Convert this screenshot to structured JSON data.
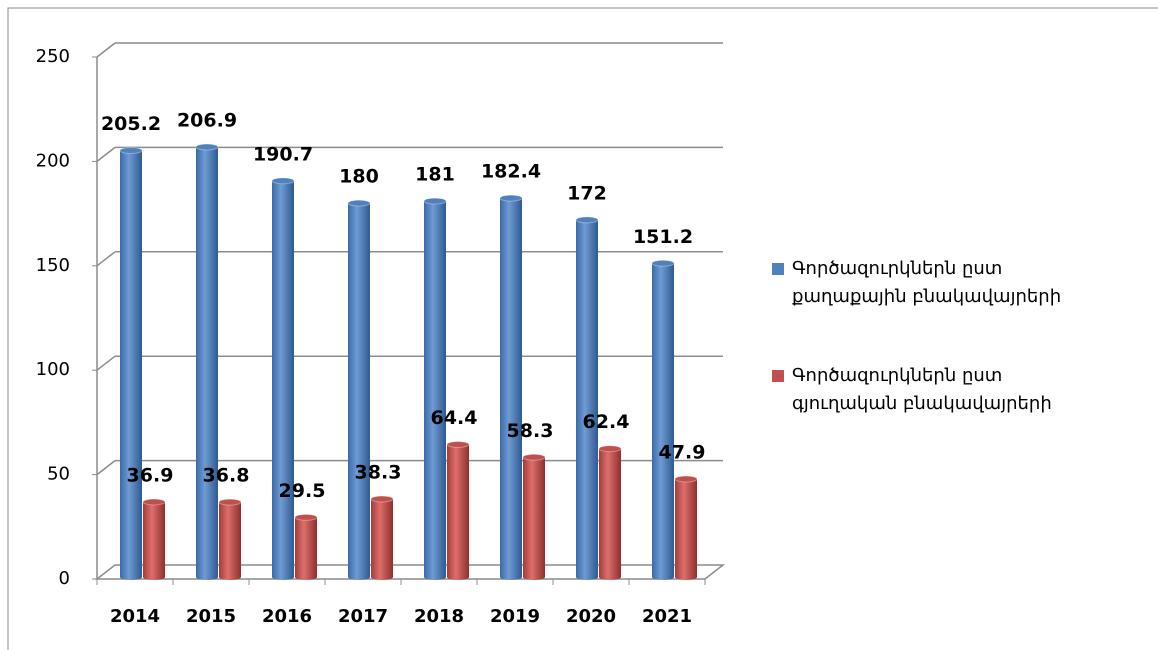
{
  "chart_data": {
    "type": "bar",
    "categories": [
      "2014",
      "2015",
      "2016",
      "2017",
      "2018",
      "2019",
      "2020",
      "2021"
    ],
    "series": [
      {
        "name": "Գործազուրկներն ըստ\nքաղաքային բնակավայրերի",
        "color": "#4f81bd",
        "values": [
          205.2,
          206.9,
          190.7,
          180,
          181,
          182.4,
          172,
          151.2
        ]
      },
      {
        "name": "Գործազուրկներն ըստ\nգյուղական բնակավայրերի",
        "color": "#c0504d",
        "values": [
          36.9,
          36.8,
          29.5,
          38.3,
          64.4,
          58.3,
          62.4,
          47.9
        ]
      }
    ],
    "ylim": [
      0,
      250
    ],
    "yticks": [
      0,
      50,
      100,
      150,
      200,
      250
    ],
    "grid": true,
    "legend": "right"
  }
}
